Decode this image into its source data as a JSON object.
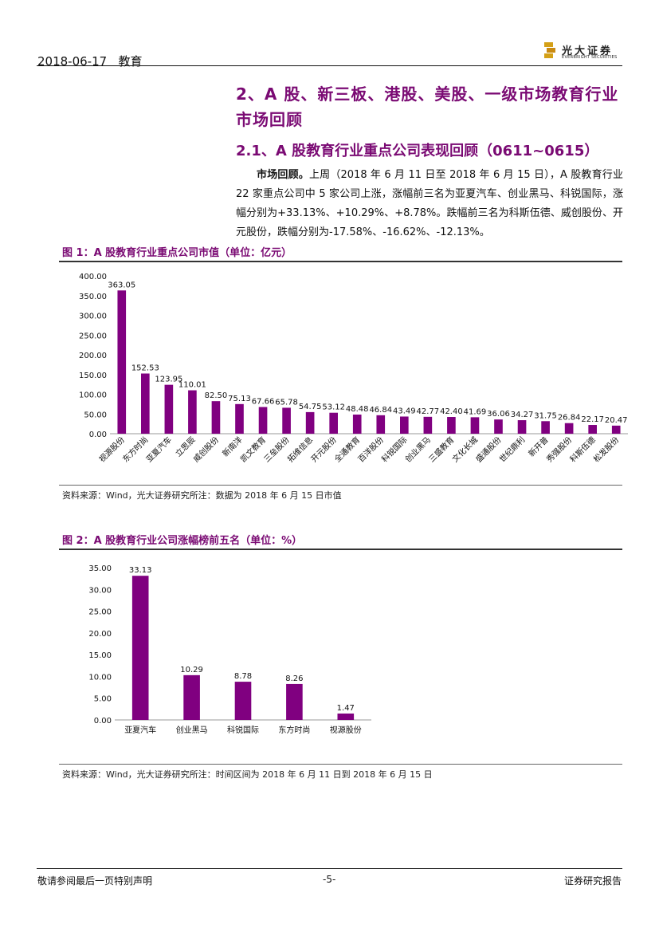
{
  "header": {
    "date": "2018-06-17",
    "category": "教育",
    "logo_cn": "光大证券",
    "logo_en": "EVERBRIGHT SECURITIES"
  },
  "section": {
    "title": "2、A 股、新三板、港股、美股、一级市场教育行业市场回顾",
    "subtitle": "2.1、A 股教育行业重点公司表现回顾（0611~0615）",
    "para_lead": "市场回顾。",
    "para_body": "上周（2018 年 6 月 11 日至 2018 年 6 月 15 日），A 股教育行业 22 家重点公司中 5 家公司上涨，涨幅前三名为亚夏汽车、创业黑马、科锐国际，涨幅分别为+33.13%、+10.29%、+8.78%。跌幅前三名为科斯伍德、威创股份、开元股份，跌幅分别为-17.58%、-16.62%、-12.13%。"
  },
  "figure1": {
    "title": "图 1：A 股教育行业重点公司市值（单位：亿元）",
    "source": "资料来源：Wind，光大证券研究所注：数据为 2018 年 6 月 15 日市值"
  },
  "figure2": {
    "title": "图 2：A 股教育行业公司涨幅榜前五名（单位：%）",
    "source": "资料来源：Wind，光大证券研究所注：时间区间为 2018 年 6 月 11 日到 2018 年 6 月 15 日"
  },
  "footer": {
    "left": "敬请参阅最后一页特别声明",
    "page": "-5-",
    "right": "证券研究报告"
  },
  "chart_data": [
    {
      "type": "bar",
      "bar_color": "#800080",
      "categories": [
        "视源股份",
        "东方时尚",
        "亚夏汽车",
        "立思辰",
        "威创股份",
        "新南洋",
        "凯文教育",
        "三垒股份",
        "拓维信息",
        "开元股份",
        "全通教育",
        "百洋股份",
        "科锐国际",
        "创业黑马",
        "三盛教育",
        "文化长城",
        "盛通股份",
        "世纪鼎利",
        "新开普",
        "秀强股份",
        "科斯伍德",
        "松发股份"
      ],
      "values": [
        363.05,
        152.53,
        123.95,
        110.01,
        82.5,
        75.13,
        67.66,
        65.78,
        54.75,
        53.12,
        48.48,
        46.84,
        43.49,
        42.77,
        42.4,
        41.69,
        36.06,
        34.27,
        31.75,
        26.84,
        22.17,
        20.47
      ],
      "labels": [
        "363.05",
        "152.53",
        "123.95",
        "110.01",
        "82.50",
        "75.13",
        "67.66",
        "65.78",
        "54.75",
        "53.12",
        "48.48",
        "46.84",
        "43.49",
        "42.77",
        "42.40",
        "41.69",
        "36.06",
        "34.27",
        "31.75",
        "26.84",
        "22.17",
        "20.47"
      ],
      "ylim": [
        0,
        400
      ],
      "yticks": [
        "0.00",
        "50.00",
        "100.00",
        "150.00",
        "200.00",
        "250.00",
        "300.00",
        "350.00",
        "400.00"
      ],
      "ytick_values": [
        0,
        50,
        100,
        150,
        200,
        250,
        300,
        350,
        400
      ]
    },
    {
      "type": "bar",
      "bar_color": "#800080",
      "categories": [
        "亚夏汽车",
        "创业黑马",
        "科锐国际",
        "东方时尚",
        "视源股份"
      ],
      "values": [
        33.13,
        10.29,
        8.78,
        8.26,
        1.47
      ],
      "labels": [
        "33.13",
        "10.29",
        "8.78",
        "8.26",
        "1.47"
      ],
      "ylim": [
        0,
        35
      ],
      "yticks": [
        "0.00",
        "5.00",
        "10.00",
        "15.00",
        "20.00",
        "25.00",
        "30.00",
        "35.00"
      ],
      "ytick_values": [
        0,
        5,
        10,
        15,
        20,
        25,
        30,
        35
      ]
    }
  ]
}
